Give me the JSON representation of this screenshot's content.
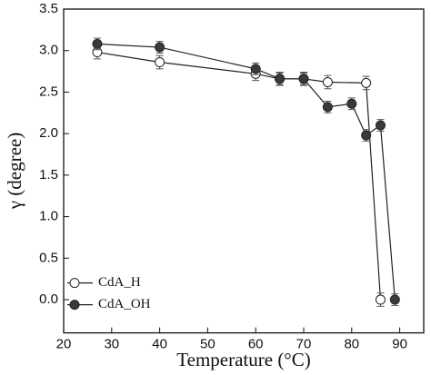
{
  "chart_data": {
    "type": "line",
    "x_label": "Temperature (°C)",
    "y_label": "γ (degree)",
    "xlim": [
      20,
      95
    ],
    "ylim": [
      -0.4,
      3.5
    ],
    "xticks": [
      20,
      30,
      40,
      50,
      60,
      70,
      80,
      90
    ],
    "yticks": [
      {
        "value": 0,
        "label": "0.0"
      },
      0.5,
      {
        "value": 1,
        "label": "1.0"
      },
      1.5,
      {
        "value": 2,
        "label": "2.0"
      },
      2.5,
      {
        "value": 3,
        "label": "3.0"
      },
      3.5
    ],
    "legend": "lower left",
    "series": [
      {
        "name": "CdA_H",
        "color": "#222222",
        "marker_fill": "#ffffff",
        "x": [
          27,
          40,
          60,
          65,
          70,
          75,
          83,
          86
        ],
        "values": [
          2.98,
          2.86,
          2.72,
          2.66,
          2.66,
          2.62,
          2.61,
          0.0
        ],
        "errors": [
          0.08,
          0.08,
          0.08,
          0.08,
          0.08,
          0.08,
          0.08,
          0.08
        ]
      },
      {
        "name": "CdA_OH",
        "color": "#222222",
        "marker_fill": "#3a3a3a",
        "x": [
          27,
          40,
          60,
          65,
          70,
          75,
          80,
          83,
          86,
          89
        ],
        "values": [
          3.08,
          3.04,
          2.78,
          2.66,
          2.66,
          2.32,
          2.36,
          1.98,
          2.1,
          0.0
        ],
        "errors": [
          0.07,
          0.07,
          0.07,
          0.07,
          0.07,
          0.07,
          0.07,
          0.07,
          0.07,
          0.07
        ]
      }
    ]
  }
}
